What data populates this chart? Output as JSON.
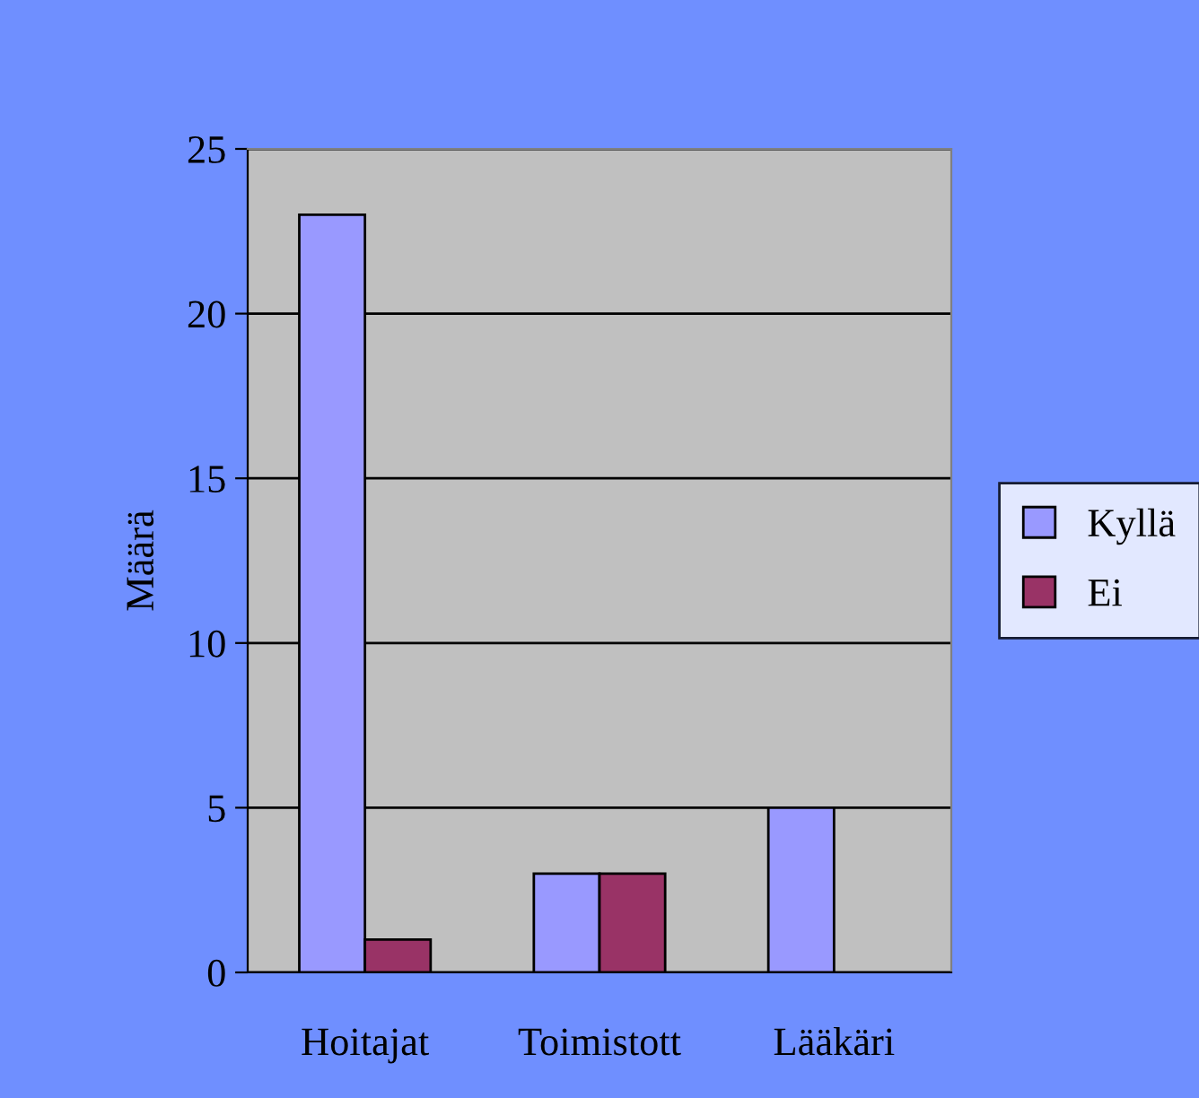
{
  "chart_data": {
    "type": "bar",
    "ylabel": "Määrä",
    "categories": [
      "Hoitajat",
      "Toimistott",
      "Lääkäri"
    ],
    "series": [
      {
        "name": "Kyllä",
        "color": "#9999ff",
        "values": [
          23,
          3,
          5
        ]
      },
      {
        "name": "Ei",
        "color": "#993366",
        "values": [
          1,
          3,
          null
        ]
      }
    ],
    "ylim": [
      0,
      25
    ],
    "yticks": [
      0,
      5,
      10,
      15,
      20,
      25
    ],
    "grid": "y",
    "legend": "right"
  }
}
